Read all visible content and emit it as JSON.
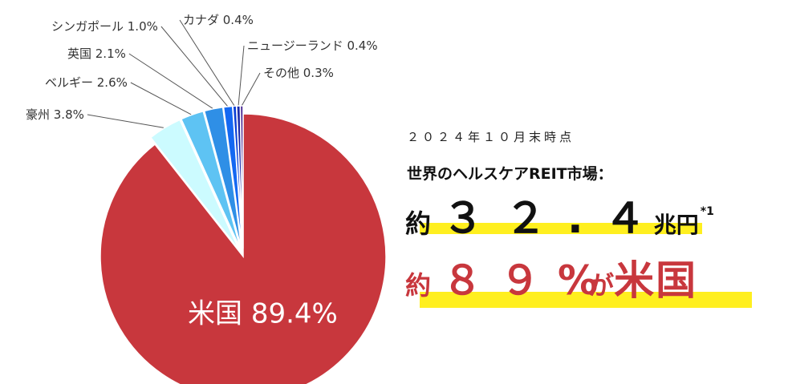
{
  "chart_data": {
    "type": "pie",
    "title": "",
    "slices": [
      {
        "label": "米国",
        "value": 89.4,
        "display": "米国 89.4%",
        "color": "#c8373d"
      },
      {
        "label": "豪州",
        "value": 3.8,
        "display": "豪州 3.8%",
        "color": "#ccfbff"
      },
      {
        "label": "ベルギー",
        "value": 2.6,
        "display": "ベルギー 2.6%",
        "color": "#5ec3f3"
      },
      {
        "label": "英国",
        "value": 2.1,
        "display": "英国 2.1%",
        "color": "#2f8fe6"
      },
      {
        "label": "シンガポール",
        "value": 1.0,
        "display": "シンガポール 1.0%",
        "color": "#1468f2"
      },
      {
        "label": "カナダ",
        "value": 0.4,
        "display": "カナダ 0.4%",
        "color": "#0a3fd6"
      },
      {
        "label": "ニュージーランド",
        "value": 0.4,
        "display": "ニュージーランド 0.4%",
        "color": "#1b2aa8"
      },
      {
        "label": "その他",
        "value": 0.3,
        "display": "その他 0.3%",
        "color": "#3c1a8c"
      }
    ]
  },
  "panel": {
    "as_of": "２０２４年１０月末時点",
    "market_label": "世界のヘルスケアREIT市場：",
    "size_prefix": "約",
    "size_number": "３２.４",
    "size_unit": "兆円",
    "size_note": "*1",
    "share_prefix": "約",
    "share_number": "８９",
    "share_suffix": "%",
    "share_ga": "が",
    "share_country": "米国"
  },
  "colors": {
    "highlight": "#ffef1f",
    "accent_red": "#c8373d",
    "text_dark": "#111111"
  }
}
